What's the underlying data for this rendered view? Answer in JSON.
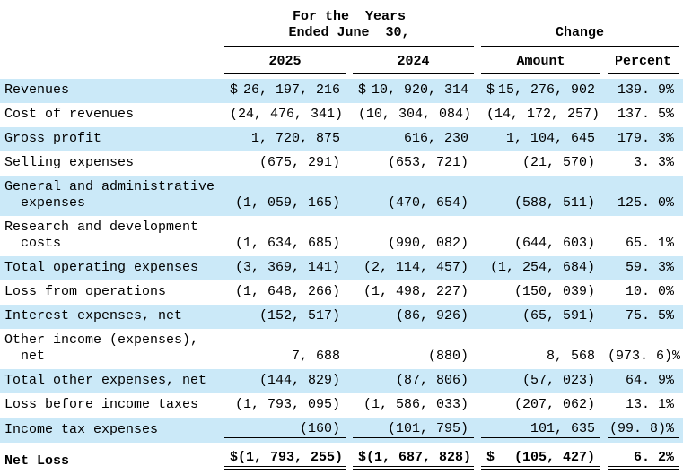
{
  "colors": {
    "row_highlight": "#cbe9f8",
    "text": "#000000",
    "background": "#ffffff"
  },
  "header": {
    "years_group_line1": "For the  Years",
    "years_group_line2": "Ended June  30,",
    "change_group": "Change",
    "columns": {
      "y2025": "2025",
      "y2024": "2024",
      "amount": "Amount",
      "percent": "Percent"
    }
  },
  "rows": [
    {
      "label": "Revenues",
      "dollar": true,
      "y2025": "26, 197, 216",
      "y2024": "10, 920, 314",
      "amount": "15, 276, 902",
      "percent": "139. 9%",
      "highlight": true,
      "bold": false,
      "rule": "none"
    },
    {
      "label": "Cost of revenues",
      "dollar": false,
      "y2025": "(24, 476, 341)",
      "y2024": "(10, 304, 084)",
      "amount": "(14, 172, 257)",
      "percent": "137. 5%",
      "highlight": false,
      "bold": false,
      "rule": "none"
    },
    {
      "label": "Gross profit",
      "dollar": false,
      "y2025": "1, 720, 875",
      "y2024": "616, 230",
      "amount": "1, 104, 645",
      "percent": "179. 3%",
      "highlight": true,
      "bold": false,
      "rule": "none"
    },
    {
      "label": "Selling expenses",
      "dollar": false,
      "y2025": "(675, 291)",
      "y2024": "(653, 721)",
      "amount": "(21, 570)",
      "percent": "3. 3%",
      "highlight": false,
      "bold": false,
      "rule": "none"
    },
    {
      "label": "General and administrative\n  expenses",
      "dollar": false,
      "y2025": "(1, 059, 165)",
      "y2024": "(470, 654)",
      "amount": "(588, 511)",
      "percent": "125. 0%",
      "highlight": true,
      "bold": false,
      "rule": "none"
    },
    {
      "label": "Research and development\n  costs",
      "dollar": false,
      "y2025": "(1, 634, 685)",
      "y2024": "(990, 082)",
      "amount": "(644, 603)",
      "percent": "65. 1%",
      "highlight": false,
      "bold": false,
      "rule": "none"
    },
    {
      "label": "Total operating expenses",
      "dollar": false,
      "y2025": "(3, 369, 141)",
      "y2024": "(2, 114, 457)",
      "amount": "(1, 254, 684)",
      "percent": "59. 3%",
      "highlight": true,
      "bold": false,
      "rule": "none"
    },
    {
      "label": "Loss from operations",
      "dollar": false,
      "y2025": "(1, 648, 266)",
      "y2024": "(1, 498, 227)",
      "amount": "(150, 039)",
      "percent": "10. 0%",
      "highlight": false,
      "bold": false,
      "rule": "none"
    },
    {
      "label": "Interest expenses, net",
      "dollar": false,
      "y2025": "(152, 517)",
      "y2024": "(86, 926)",
      "amount": "(65, 591)",
      "percent": "75. 5%",
      "highlight": true,
      "bold": false,
      "rule": "none"
    },
    {
      "label": "Other income (expenses),\n  net",
      "dollar": false,
      "y2025": "7, 688",
      "y2024": "(880)",
      "amount": "8, 568",
      "percent": "(973. 6)%",
      "highlight": false,
      "bold": false,
      "rule": "none"
    },
    {
      "label": "Total other expenses, net",
      "dollar": false,
      "y2025": "(144, 829)",
      "y2024": "(87, 806)",
      "amount": "(57, 023)",
      "percent": "64. 9%",
      "highlight": true,
      "bold": false,
      "rule": "none"
    },
    {
      "label": "Loss before income taxes",
      "dollar": false,
      "y2025": "(1, 793, 095)",
      "y2024": "(1, 586, 033)",
      "amount": "(207, 062)",
      "percent": "13. 1%",
      "highlight": false,
      "bold": false,
      "rule": "none"
    },
    {
      "label": "Income tax expenses",
      "dollar": false,
      "y2025": "(160)",
      "y2024": "(101, 795)",
      "amount": "101, 635",
      "percent": "(99. 8)%",
      "highlight": true,
      "bold": false,
      "rule": "single"
    },
    {
      "label": "Net Loss",
      "dollar": true,
      "y2025": "(1, 793, 255)",
      "y2024": "(1, 687, 828)",
      "amount": "(105, 427)",
      "percent": "6. 2%",
      "highlight": false,
      "bold": true,
      "rule": "double"
    }
  ]
}
